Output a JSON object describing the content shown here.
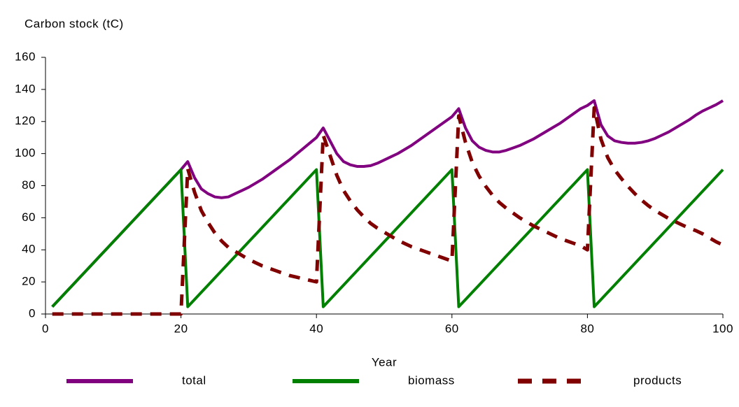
{
  "chart_data": {
    "type": "line",
    "ylabel": "Carbon stock (tC)",
    "xlabel": "Year",
    "x": [
      1,
      2,
      3,
      4,
      5,
      6,
      7,
      8,
      9,
      10,
      11,
      12,
      13,
      14,
      15,
      16,
      17,
      18,
      19,
      20,
      21,
      22,
      23,
      24,
      25,
      26,
      27,
      28,
      29,
      30,
      31,
      32,
      33,
      34,
      35,
      36,
      37,
      38,
      39,
      40,
      41,
      42,
      43,
      44,
      45,
      46,
      47,
      48,
      49,
      50,
      51,
      52,
      53,
      54,
      55,
      56,
      57,
      58,
      59,
      60,
      61,
      62,
      63,
      64,
      65,
      66,
      67,
      68,
      69,
      70,
      71,
      72,
      73,
      74,
      75,
      76,
      77,
      78,
      79,
      80,
      81,
      82,
      83,
      84,
      85,
      86,
      87,
      88,
      89,
      90,
      91,
      92,
      93,
      94,
      95,
      96,
      97,
      98,
      99,
      100
    ],
    "series": [
      {
        "name": "total",
        "color": "#800080",
        "dash": false,
        "values": [
          4.5,
          9,
          13.5,
          18,
          22.5,
          27,
          31.5,
          36,
          40.5,
          45,
          49.5,
          54,
          58.5,
          63,
          67.5,
          72,
          76.5,
          81,
          85.5,
          90,
          95,
          85,
          78,
          75,
          73,
          72.5,
          73,
          75,
          77,
          79,
          81.5,
          84,
          87,
          90,
          93,
          96,
          99.5,
          103,
          106.5,
          110,
          116,
          108,
          100,
          95,
          93,
          92,
          92,
          92.5,
          94,
          96,
          98,
          100,
          102.5,
          105,
          108,
          111,
          114,
          117,
          120,
          123,
          128,
          116,
          108,
          104,
          102,
          101,
          101,
          102,
          103.5,
          105,
          107,
          109,
          111.5,
          114,
          116.5,
          119,
          122,
          125,
          128,
          130,
          133,
          118,
          111,
          108,
          107,
          106.5,
          106.5,
          107,
          108,
          109.5,
          111.5,
          113.5,
          116,
          118.5,
          121,
          124,
          126.5,
          128.5,
          130.5,
          133
        ]
      },
      {
        "name": "biomass",
        "color": "#008000",
        "dash": false,
        "values": [
          4.5,
          9,
          13.5,
          18,
          22.5,
          27,
          31.5,
          36,
          40.5,
          45,
          49.5,
          54,
          58.5,
          63,
          67.5,
          72,
          76.5,
          81,
          85.5,
          90,
          4.5,
          9,
          13.5,
          18,
          22.5,
          27,
          31.5,
          36,
          40.5,
          45,
          49.5,
          54,
          58.5,
          63,
          67.5,
          72,
          76.5,
          81,
          85.5,
          90,
          4.5,
          9,
          13.5,
          18,
          22.5,
          27,
          31.5,
          36,
          40.5,
          45,
          49.5,
          54,
          58.5,
          63,
          67.5,
          72,
          76.5,
          81,
          85.5,
          90,
          4.5,
          9,
          13.5,
          18,
          22.5,
          27,
          31.5,
          36,
          40.5,
          45,
          49.5,
          54,
          58.5,
          63,
          67.5,
          72,
          76.5,
          81,
          85.5,
          90,
          4.5,
          9,
          13.5,
          18,
          22.5,
          27,
          31.5,
          36,
          40.5,
          45,
          49.5,
          54,
          58.5,
          63,
          67.5,
          72,
          76.5,
          81,
          85.5,
          90
        ]
      },
      {
        "name": "products",
        "color": "#800000",
        "dash": true,
        "values": [
          0,
          0,
          0,
          0,
          0,
          0,
          0,
          0,
          0,
          0,
          0,
          0,
          0,
          0,
          0,
          0,
          0,
          0,
          0,
          0,
          90.5,
          76,
          64.5,
          57,
          50.5,
          45.5,
          41.5,
          39,
          36.5,
          34,
          32,
          30,
          28.5,
          27,
          25.5,
          24,
          23,
          22,
          21,
          20,
          111.5,
          99,
          86.5,
          77,
          70.5,
          65,
          60.5,
          56.5,
          53.5,
          51,
          48.5,
          46,
          44,
          42,
          40.5,
          39,
          37.5,
          36,
          34.5,
          33,
          123.5,
          107,
          94.5,
          86,
          79.5,
          74,
          69.5,
          66,
          63,
          60,
          57.5,
          55,
          53,
          51,
          49,
          47,
          45.5,
          44,
          42.5,
          40,
          128.5,
          109,
          97.5,
          90,
          84.5,
          79.5,
          75,
          71,
          67.5,
          64.5,
          62,
          59.5,
          57.5,
          55.5,
          53.5,
          52,
          50,
          47.5,
          45,
          43
        ]
      }
    ],
    "xlim": [
      0,
      100
    ],
    "xticks": [
      0,
      20,
      40,
      60,
      80,
      100
    ],
    "ylim": [
      0,
      160
    ],
    "yticks": [
      0,
      20,
      40,
      60,
      80,
      100,
      120,
      140,
      160
    ],
    "grid": false,
    "legend": "bottom"
  }
}
